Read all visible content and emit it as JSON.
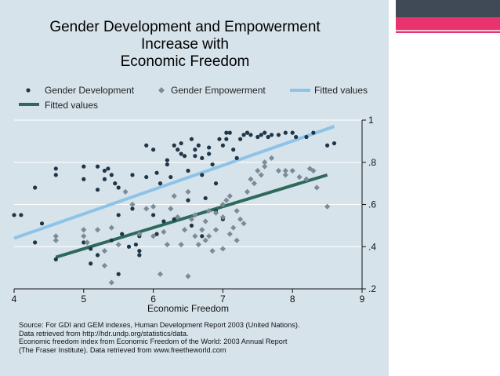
{
  "chart_data": {
    "type": "scatter",
    "title_lines": [
      "Gender Development and Empowerment",
      "Increase with",
      "Economic Freedom"
    ],
    "xlabel": "Economic Freedom",
    "ylabel": "",
    "xlim": [
      4,
      9
    ],
    "ylim": [
      0.2,
      1.0
    ],
    "x_ticks": [
      4,
      5,
      6,
      7,
      8,
      9
    ],
    "y_ticks": [
      0.2,
      0.4,
      0.6,
      0.8,
      1.0
    ],
    "y_tick_labels": [
      ".2",
      ".4",
      ".6",
      ".8",
      "1"
    ],
    "y_axis_side": "right",
    "grid": "horizontal",
    "legend_position": "top",
    "legend": [
      {
        "label": "Gender Development",
        "marker": "dot",
        "color": "#1f3548"
      },
      {
        "label": "Gender Empowerment",
        "marker": "diamond",
        "color": "#7d8b98"
      },
      {
        "label": "Fitted values",
        "marker": "line",
        "color": "#8ec3e8"
      },
      {
        "label": "Fitted values",
        "marker": "line",
        "color": "#2e6a5c"
      }
    ],
    "series": [
      {
        "name": "Gender Development",
        "color": "#1f3548",
        "marker": "dot",
        "points": [
          [
            4.0,
            0.55
          ],
          [
            4.1,
            0.55
          ],
          [
            4.3,
            0.68
          ],
          [
            4.3,
            0.42
          ],
          [
            4.4,
            0.51
          ],
          [
            4.6,
            0.77
          ],
          [
            4.6,
            0.74
          ],
          [
            4.6,
            0.34
          ],
          [
            5.0,
            0.78
          ],
          [
            5.0,
            0.72
          ],
          [
            5.0,
            0.42
          ],
          [
            5.1,
            0.39
          ],
          [
            5.1,
            0.32
          ],
          [
            5.2,
            0.78
          ],
          [
            5.2,
            0.67
          ],
          [
            5.2,
            0.36
          ],
          [
            5.3,
            0.76
          ],
          [
            5.3,
            0.72
          ],
          [
            5.35,
            0.77
          ],
          [
            5.4,
            0.74
          ],
          [
            5.4,
            0.43
          ],
          [
            5.45,
            0.7
          ],
          [
            5.5,
            0.68
          ],
          [
            5.5,
            0.55
          ],
          [
            5.5,
            0.27
          ],
          [
            5.55,
            0.46
          ],
          [
            5.7,
            0.74
          ],
          [
            5.7,
            0.58
          ],
          [
            5.75,
            0.41
          ],
          [
            5.8,
            0.36
          ],
          [
            5.8,
            0.45
          ],
          [
            5.9,
            0.73
          ],
          [
            5.9,
            0.88
          ],
          [
            6.0,
            0.86
          ],
          [
            6.0,
            0.55
          ],
          [
            6.05,
            0.75
          ],
          [
            6.1,
            0.7
          ],
          [
            6.15,
            0.52
          ],
          [
            6.2,
            0.79
          ],
          [
            6.2,
            0.81
          ],
          [
            6.25,
            0.73
          ],
          [
            6.3,
            0.88
          ],
          [
            6.3,
            0.53
          ],
          [
            6.35,
            0.86
          ],
          [
            6.4,
            0.89
          ],
          [
            6.4,
            0.84
          ],
          [
            6.45,
            0.83
          ],
          [
            6.5,
            0.76
          ],
          [
            6.5,
            0.62
          ],
          [
            6.55,
            0.91
          ],
          [
            6.6,
            0.83
          ],
          [
            6.6,
            0.86
          ],
          [
            6.65,
            0.88
          ],
          [
            6.7,
            0.74
          ],
          [
            6.7,
            0.82
          ],
          [
            6.75,
            0.63
          ],
          [
            6.8,
            0.84
          ],
          [
            6.8,
            0.87
          ],
          [
            6.85,
            0.79
          ],
          [
            6.9,
            0.7
          ],
          [
            6.95,
            0.91
          ],
          [
            7.0,
            0.88
          ],
          [
            7.05,
            0.94
          ],
          [
            7.05,
            0.91
          ],
          [
            7.1,
            0.94
          ],
          [
            7.15,
            0.86
          ],
          [
            7.2,
            0.82
          ],
          [
            7.25,
            0.91
          ],
          [
            7.3,
            0.93
          ],
          [
            7.35,
            0.94
          ],
          [
            7.4,
            0.93
          ],
          [
            7.5,
            0.92
          ],
          [
            7.55,
            0.93
          ],
          [
            7.6,
            0.94
          ],
          [
            7.65,
            0.92
          ],
          [
            7.7,
            0.93
          ],
          [
            7.8,
            0.93
          ],
          [
            7.9,
            0.94
          ],
          [
            8.0,
            0.94
          ],
          [
            8.05,
            0.92
          ],
          [
            8.2,
            0.92
          ],
          [
            8.3,
            0.94
          ],
          [
            8.5,
            0.88
          ],
          [
            8.6,
            0.89
          ],
          [
            6.9,
            0.57
          ],
          [
            7.0,
            0.53
          ],
          [
            6.7,
            0.45
          ],
          [
            6.55,
            0.5
          ],
          [
            6.35,
            0.54
          ],
          [
            6.05,
            0.46
          ],
          [
            5.65,
            0.4
          ],
          [
            5.8,
            0.38
          ]
        ]
      },
      {
        "name": "Gender Empowerment",
        "color": "#7d8b98",
        "marker": "diamond",
        "points": [
          [
            4.6,
            0.45
          ],
          [
            4.6,
            0.43
          ],
          [
            5.0,
            0.45
          ],
          [
            5.0,
            0.48
          ],
          [
            5.05,
            0.42
          ],
          [
            5.2,
            0.48
          ],
          [
            5.3,
            0.38
          ],
          [
            5.3,
            0.31
          ],
          [
            5.4,
            0.49
          ],
          [
            5.4,
            0.23
          ],
          [
            5.5,
            0.41
          ],
          [
            5.6,
            0.66
          ],
          [
            5.7,
            0.6
          ],
          [
            5.8,
            0.46
          ],
          [
            5.9,
            0.58
          ],
          [
            6.0,
            0.59
          ],
          [
            6.0,
            0.45
          ],
          [
            6.1,
            0.27
          ],
          [
            6.15,
            0.47
          ],
          [
            6.2,
            0.41
          ],
          [
            6.25,
            0.58
          ],
          [
            6.3,
            0.64
          ],
          [
            6.35,
            0.54
          ],
          [
            6.4,
            0.41
          ],
          [
            6.45,
            0.48
          ],
          [
            6.5,
            0.66
          ],
          [
            6.5,
            0.26
          ],
          [
            6.55,
            0.53
          ],
          [
            6.6,
            0.45
          ],
          [
            6.6,
            0.55
          ],
          [
            6.65,
            0.41
          ],
          [
            6.7,
            0.48
          ],
          [
            6.75,
            0.52
          ],
          [
            6.8,
            0.57
          ],
          [
            6.8,
            0.45
          ],
          [
            6.85,
            0.38
          ],
          [
            6.9,
            0.56
          ],
          [
            7.0,
            0.54
          ],
          [
            7.0,
            0.6
          ],
          [
            7.05,
            0.62
          ],
          [
            7.1,
            0.64
          ],
          [
            7.15,
            0.49
          ],
          [
            7.2,
            0.43
          ],
          [
            7.25,
            0.53
          ],
          [
            7.3,
            0.51
          ],
          [
            7.35,
            0.66
          ],
          [
            7.4,
            0.72
          ],
          [
            7.45,
            0.7
          ],
          [
            7.5,
            0.76
          ],
          [
            7.55,
            0.74
          ],
          [
            7.6,
            0.78
          ],
          [
            7.7,
            0.82
          ],
          [
            7.8,
            0.76
          ],
          [
            7.9,
            0.74
          ],
          [
            8.0,
            0.76
          ],
          [
            8.1,
            0.73
          ],
          [
            8.2,
            0.72
          ],
          [
            8.3,
            0.76
          ],
          [
            8.35,
            0.68
          ],
          [
            8.5,
            0.59
          ],
          [
            7.0,
            0.39
          ],
          [
            7.1,
            0.46
          ],
          [
            6.9,
            0.48
          ],
          [
            6.75,
            0.43
          ],
          [
            7.6,
            0.8
          ],
          [
            7.9,
            0.76
          ],
          [
            8.25,
            0.77
          ],
          [
            7.2,
            0.57
          ]
        ]
      }
    ],
    "fitted_lines": [
      {
        "name": "Fitted values",
        "color": "#8ec3e8",
        "from": [
          4.0,
          0.44
        ],
        "to": [
          8.6,
          0.97
        ]
      },
      {
        "name": "Fitted values",
        "color": "#2e6a5c",
        "from": [
          4.6,
          0.35
        ],
        "to": [
          8.5,
          0.74
        ]
      }
    ]
  },
  "source_note": [
    "Source: For GDI and GEM indexes, Human Development Report  2003 (United Nations).",
    "Data retrieved from http://hdr.undp.org/statistics/data.",
    "Economic freedom index from Economic Freedom of the World: 2003 Annual Report",
    "(The Fraser Institute).  Data retrieved from www.freetheworld.com"
  ]
}
